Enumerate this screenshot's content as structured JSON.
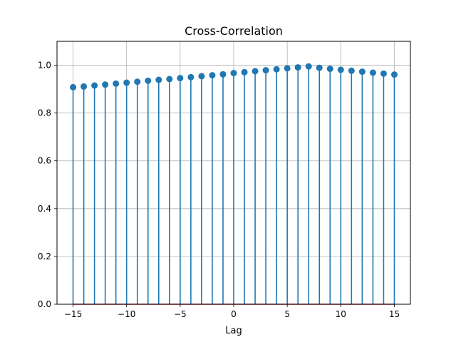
{
  "chart_data": {
    "type": "stem",
    "title": "Cross-Correlation",
    "xlabel": "Lag",
    "ylabel": "",
    "xlim": [
      -16.5,
      16.5
    ],
    "ylim": [
      0.0,
      1.1
    ],
    "grid": true,
    "legend": "none",
    "x": [
      -15,
      -14,
      -13,
      -12,
      -11,
      -10,
      -9,
      -8,
      -7,
      -6,
      -5,
      -4,
      -3,
      -2,
      -1,
      0,
      1,
      2,
      3,
      4,
      5,
      6,
      7,
      8,
      9,
      10,
      11,
      12,
      13,
      14,
      15
    ],
    "series": [
      {
        "values": [
          0.908,
          0.911,
          0.915,
          0.919,
          0.923,
          0.927,
          0.931,
          0.935,
          0.939,
          0.942,
          0.946,
          0.95,
          0.954,
          0.958,
          0.962,
          0.967,
          0.971,
          0.975,
          0.979,
          0.983,
          0.987,
          0.991,
          0.995,
          0.989,
          0.985,
          0.981,
          0.977,
          0.973,
          0.969,
          0.965,
          0.961
        ]
      }
    ],
    "xticks": [
      -15,
      -10,
      -5,
      0,
      5,
      10,
      15
    ],
    "xtick_labels": [
      "−15",
      "−10",
      "−5",
      "0",
      "5",
      "10",
      "15"
    ],
    "yticks": [
      0.0,
      0.2,
      0.4,
      0.6,
      0.8,
      1.0
    ],
    "ytick_labels": [
      "0.0",
      "0.2",
      "0.4",
      "0.6",
      "0.8",
      "1.0"
    ],
    "colors": {
      "stem": "#1f77b4",
      "marker": "#1f77b4",
      "baseline": "#d62728",
      "grid": "#b0b0b0",
      "axes": "#000000"
    }
  }
}
